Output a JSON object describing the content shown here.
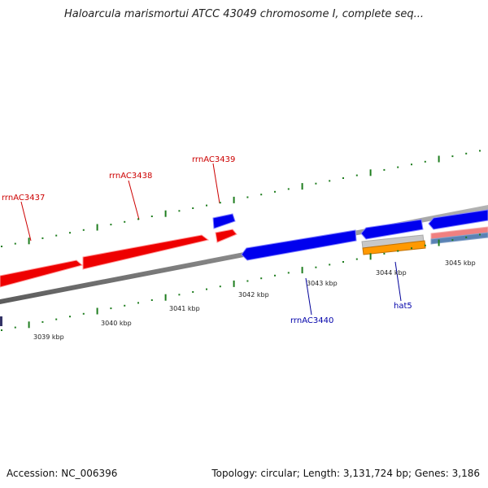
{
  "title": "Haloarcula marismortui ATCC 43049 chromosome I, complete seq...",
  "footer": {
    "accession": "Accession: NC_006396",
    "summary": "Topology: circular; Length: 3,131,724 bp; Genes: 3,186"
  },
  "colors": {
    "backbone": "#808080",
    "tick": "#1e7d1e",
    "forward_gene": "#ff0000",
    "reverse_gene": "#0000ee",
    "label_forward": "#cc0000",
    "label_reverse": "#0000aa",
    "light_red": "#f08080",
    "grey_feature": "#c8c8c8",
    "orange_feature": "#ff9900",
    "steel_feature": "#5a82b4"
  },
  "scale_labels": [
    "3039 kbp",
    "3040 kbp",
    "3041 kbp",
    "3042 kbp",
    "3043 kbp",
    "3044 kbp",
    "3045 kbp"
  ],
  "gene_labels": [
    {
      "name": "rrnAC3437",
      "strand": "forward"
    },
    {
      "name": "rrnAC3438",
      "strand": "forward"
    },
    {
      "name": "rrnAC3439",
      "strand": "forward"
    },
    {
      "name": "rrnAC3440",
      "strand": "reverse"
    },
    {
      "name": "hat5",
      "strand": "reverse"
    }
  ]
}
